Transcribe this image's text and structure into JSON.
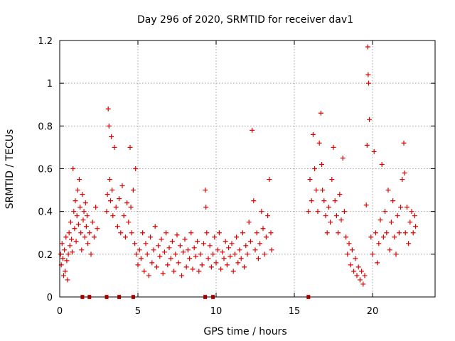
{
  "chart_data": {
    "type": "scatter",
    "title": "Day 296 of 2020, SRMTID for receiver dav1",
    "xlabel": "GPS time / hours",
    "ylabel": "SRMTID / TECUs",
    "xlim": [
      0,
      24
    ],
    "ylim": [
      0,
      1.2
    ],
    "xticks": [
      0,
      5,
      10,
      15,
      20
    ],
    "yticks": [
      0,
      0.2,
      0.4,
      0.6,
      0.8,
      1,
      1.2
    ],
    "grid": true,
    "marker": "+",
    "color": "#e00000",
    "series": [
      {
        "name": "SRMTID",
        "points": [
          [
            0.05,
            0.2
          ],
          [
            0.1,
            0.15
          ],
          [
            0.15,
            0.25
          ],
          [
            0.2,
            0.18
          ],
          [
            0.25,
            0.1
          ],
          [
            0.3,
            0.22
          ],
          [
            0.35,
            0.12
          ],
          [
            0.4,
            0.28
          ],
          [
            0.45,
            0.17
          ],
          [
            0.5,
            0.08
          ],
          [
            0.55,
            0.2
          ],
          [
            0.6,
            0.3
          ],
          [
            0.65,
            0.24
          ],
          [
            0.7,
            0.35
          ],
          [
            0.75,
            0.27
          ],
          [
            0.8,
            0.21
          ],
          [
            0.85,
            0.6
          ],
          [
            0.9,
            0.4
          ],
          [
            0.95,
            0.32
          ],
          [
            1.0,
            0.45
          ],
          [
            1.05,
            0.26
          ],
          [
            1.1,
            0.38
          ],
          [
            1.15,
            0.5
          ],
          [
            1.2,
            0.34
          ],
          [
            1.25,
            0.55
          ],
          [
            1.3,
            0.42
          ],
          [
            1.35,
            0.3
          ],
          [
            1.4,
            0.22
          ],
          [
            1.45,
            0.48
          ],
          [
            1.5,
            0.36
          ],
          [
            1.55,
            0.4
          ],
          [
            1.6,
            0.28
          ],
          [
            1.65,
            0.44
          ],
          [
            1.7,
            0.33
          ],
          [
            1.75,
            0.38
          ],
          [
            1.8,
            0.25
          ],
          [
            1.9,
            0.3
          ],
          [
            2.0,
            0.2
          ],
          [
            2.1,
            0.35
          ],
          [
            2.2,
            0.28
          ],
          [
            2.3,
            0.42
          ],
          [
            2.4,
            0.32
          ],
          [
            3.0,
            0.4
          ],
          [
            3.05,
            0.48
          ],
          [
            3.1,
            0.88
          ],
          [
            3.15,
            0.8
          ],
          [
            3.2,
            0.55
          ],
          [
            3.25,
            0.45
          ],
          [
            3.3,
            0.75
          ],
          [
            3.35,
            0.5
          ],
          [
            3.4,
            0.38
          ],
          [
            3.5,
            0.7
          ],
          [
            3.6,
            0.42
          ],
          [
            3.7,
            0.33
          ],
          [
            3.8,
            0.46
          ],
          [
            3.9,
            0.3
          ],
          [
            4.0,
            0.52
          ],
          [
            4.1,
            0.38
          ],
          [
            4.2,
            0.28
          ],
          [
            4.3,
            0.44
          ],
          [
            4.4,
            0.35
          ],
          [
            4.5,
            0.7
          ],
          [
            4.55,
            0.42
          ],
          [
            4.6,
            0.3
          ],
          [
            4.7,
            0.5
          ],
          [
            4.8,
            0.25
          ],
          [
            4.85,
            0.6
          ],
          [
            4.9,
            0.2
          ],
          [
            5.0,
            0.15
          ],
          [
            5.1,
            0.22
          ],
          [
            5.2,
            0.18
          ],
          [
            5.3,
            0.3
          ],
          [
            5.4,
            0.12
          ],
          [
            5.5,
            0.25
          ],
          [
            5.6,
            0.2
          ],
          [
            5.7,
            0.1
          ],
          [
            5.8,
            0.28
          ],
          [
            5.9,
            0.16
          ],
          [
            6.0,
            0.22
          ],
          [
            6.1,
            0.33
          ],
          [
            6.2,
            0.14
          ],
          [
            6.3,
            0.24
          ],
          [
            6.4,
            0.19
          ],
          [
            6.5,
            0.27
          ],
          [
            6.6,
            0.11
          ],
          [
            6.7,
            0.21
          ],
          [
            6.8,
            0.3
          ],
          [
            6.9,
            0.15
          ],
          [
            7.0,
            0.23
          ],
          [
            7.1,
            0.18
          ],
          [
            7.2,
            0.26
          ],
          [
            7.3,
            0.12
          ],
          [
            7.4,
            0.2
          ],
          [
            7.5,
            0.29
          ],
          [
            7.6,
            0.16
          ],
          [
            7.7,
            0.24
          ],
          [
            7.8,
            0.1
          ],
          [
            7.9,
            0.21
          ],
          [
            8.0,
            0.27
          ],
          [
            8.1,
            0.14
          ],
          [
            8.2,
            0.22
          ],
          [
            8.3,
            0.18
          ],
          [
            8.4,
            0.3
          ],
          [
            8.5,
            0.13
          ],
          [
            8.6,
            0.23
          ],
          [
            8.7,
            0.19
          ],
          [
            8.8,
            0.26
          ],
          [
            8.9,
            0.12
          ],
          [
            9.0,
            0.2
          ],
          [
            9.1,
            0.15
          ],
          [
            9.2,
            0.25
          ],
          [
            9.3,
            0.5
          ],
          [
            9.35,
            0.42
          ],
          [
            9.4,
            0.3
          ],
          [
            9.5,
            0.18
          ],
          [
            9.6,
            0.24
          ],
          [
            9.7,
            0.14
          ],
          [
            9.8,
            0.2
          ],
          [
            9.9,
            0.28
          ],
          [
            10.0,
            0.16
          ],
          [
            10.1,
            0.22
          ],
          [
            10.2,
            0.3
          ],
          [
            10.3,
            0.13
          ],
          [
            10.4,
            0.21
          ],
          [
            10.5,
            0.18
          ],
          [
            10.6,
            0.26
          ],
          [
            10.7,
            0.15
          ],
          [
            10.8,
            0.23
          ],
          [
            10.9,
            0.19
          ],
          [
            11.0,
            0.25
          ],
          [
            11.1,
            0.12
          ],
          [
            11.2,
            0.2
          ],
          [
            11.3,
            0.28
          ],
          [
            11.4,
            0.16
          ],
          [
            11.5,
            0.22
          ],
          [
            11.6,
            0.18
          ],
          [
            11.7,
            0.3
          ],
          [
            11.8,
            0.14
          ],
          [
            11.9,
            0.24
          ],
          [
            12.0,
            0.2
          ],
          [
            12.1,
            0.35
          ],
          [
            12.2,
            0.26
          ],
          [
            12.3,
            0.78
          ],
          [
            12.4,
            0.45
          ],
          [
            12.5,
            0.22
          ],
          [
            12.6,
            0.3
          ],
          [
            12.7,
            0.18
          ],
          [
            12.8,
            0.25
          ],
          [
            12.9,
            0.4
          ],
          [
            13.0,
            0.32
          ],
          [
            13.1,
            0.2
          ],
          [
            13.2,
            0.28
          ],
          [
            13.3,
            0.38
          ],
          [
            13.4,
            0.55
          ],
          [
            13.5,
            0.3
          ],
          [
            13.55,
            0.22
          ],
          [
            15.9,
            0.4
          ],
          [
            16.0,
            0.55
          ],
          [
            16.1,
            0.45
          ],
          [
            16.2,
            0.76
          ],
          [
            16.3,
            0.6
          ],
          [
            16.4,
            0.5
          ],
          [
            16.5,
            0.4
          ],
          [
            16.6,
            0.72
          ],
          [
            16.7,
            0.86
          ],
          [
            16.75,
            0.62
          ],
          [
            16.8,
            0.5
          ],
          [
            16.9,
            0.45
          ],
          [
            17.0,
            0.38
          ],
          [
            17.1,
            0.3
          ],
          [
            17.2,
            0.42
          ],
          [
            17.3,
            0.35
          ],
          [
            17.4,
            0.55
          ],
          [
            17.5,
            0.7
          ],
          [
            17.6,
            0.45
          ],
          [
            17.7,
            0.38
          ],
          [
            17.8,
            0.3
          ],
          [
            17.9,
            0.48
          ],
          [
            18.0,
            0.36
          ],
          [
            18.1,
            0.65
          ],
          [
            18.2,
            0.4
          ],
          [
            18.3,
            0.28
          ],
          [
            18.4,
            0.2
          ],
          [
            18.5,
            0.25
          ],
          [
            18.6,
            0.15
          ],
          [
            18.7,
            0.22
          ],
          [
            18.8,
            0.12
          ],
          [
            18.9,
            0.18
          ],
          [
            19.0,
            0.1
          ],
          [
            19.1,
            0.14
          ],
          [
            19.2,
            0.08
          ],
          [
            19.3,
            0.12
          ],
          [
            19.4,
            0.06
          ],
          [
            19.5,
            0.1
          ],
          [
            19.6,
            0.43
          ],
          [
            19.65,
            0.71
          ],
          [
            19.7,
            1.17
          ],
          [
            19.72,
            1.04
          ],
          [
            19.75,
            1.0
          ],
          [
            19.8,
            0.83
          ],
          [
            19.9,
            0.28
          ],
          [
            20.0,
            0.2
          ],
          [
            20.1,
            0.68
          ],
          [
            20.2,
            0.3
          ],
          [
            20.3,
            0.16
          ],
          [
            20.4,
            0.25
          ],
          [
            20.5,
            0.36
          ],
          [
            20.6,
            0.62
          ],
          [
            20.7,
            0.28
          ],
          [
            20.8,
            0.4
          ],
          [
            20.9,
            0.3
          ],
          [
            21.0,
            0.5
          ],
          [
            21.1,
            0.22
          ],
          [
            21.2,
            0.35
          ],
          [
            21.3,
            0.45
          ],
          [
            21.4,
            0.28
          ],
          [
            21.5,
            0.2
          ],
          [
            21.6,
            0.38
          ],
          [
            21.7,
            0.3
          ],
          [
            21.8,
            0.42
          ],
          [
            21.9,
            0.55
          ],
          [
            22.0,
            0.72
          ],
          [
            22.05,
            0.58
          ],
          [
            22.1,
            0.3
          ],
          [
            22.2,
            0.42
          ],
          [
            22.3,
            0.25
          ],
          [
            22.4,
            0.35
          ],
          [
            22.5,
            0.4
          ],
          [
            22.6,
            0.3
          ],
          [
            22.7,
            0.38
          ],
          [
            22.75,
            0.33
          ]
        ]
      }
    ],
    "zero_markers": [
      1.45,
      1.9,
      3.0,
      3.8,
      4.7,
      9.3,
      9.8,
      15.9
    ]
  }
}
